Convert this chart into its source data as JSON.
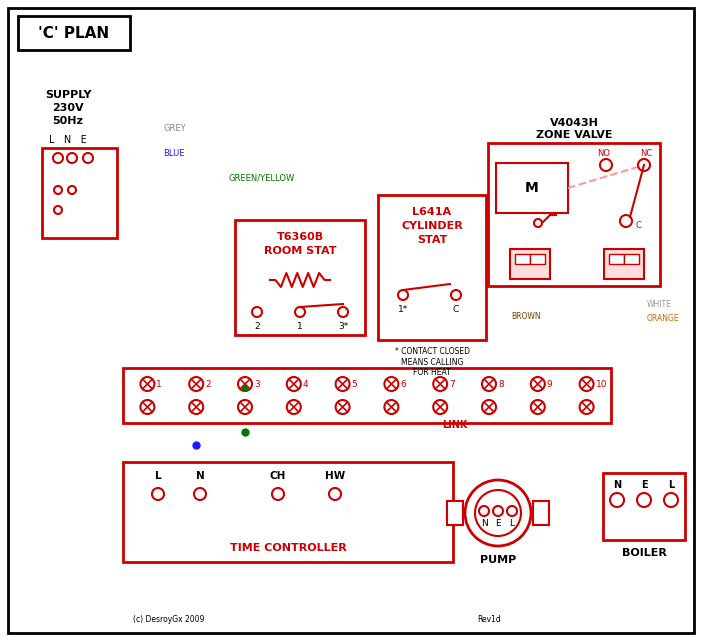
{
  "bg": "#ffffff",
  "RED": "#cc0000",
  "BLUE": "#1a1aff",
  "GREEN": "#007700",
  "BROWN": "#7B3F00",
  "GREY": "#888888",
  "ORANGE": "#cc6600",
  "BLACK": "#000000",
  "WHITE_W": "#999999",
  "PINK": "#ff9999",
  "title": "'C' PLAN",
  "supply_text": "SUPPLY\n230V\n50Hz",
  "lne": "L   N   E",
  "zone_title1": "V4043H",
  "zone_title2": "ZONE VALVE",
  "room_stat1": "T6360B",
  "room_stat2": "ROOM STAT",
  "cyl_stat1": "L641A",
  "cyl_stat2": "CYLINDER",
  "cyl_stat3": "STAT",
  "tc_label": "TIME CONTROLLER",
  "pump_label": "PUMP",
  "boiler_label": "BOILER",
  "link_label": "LINK",
  "contact_note": "* CONTACT CLOSED\nMEANS CALLING\nFOR HEAT",
  "grey_label": "GREY",
  "blue_label": "BLUE",
  "gy_label": "GREEN/YELLOW",
  "brown_label": "BROWN",
  "white_label": "WHITE",
  "orange_label": "ORANGE",
  "copyright": "(c) DesroyGx 2009",
  "rev": "Rev1d"
}
